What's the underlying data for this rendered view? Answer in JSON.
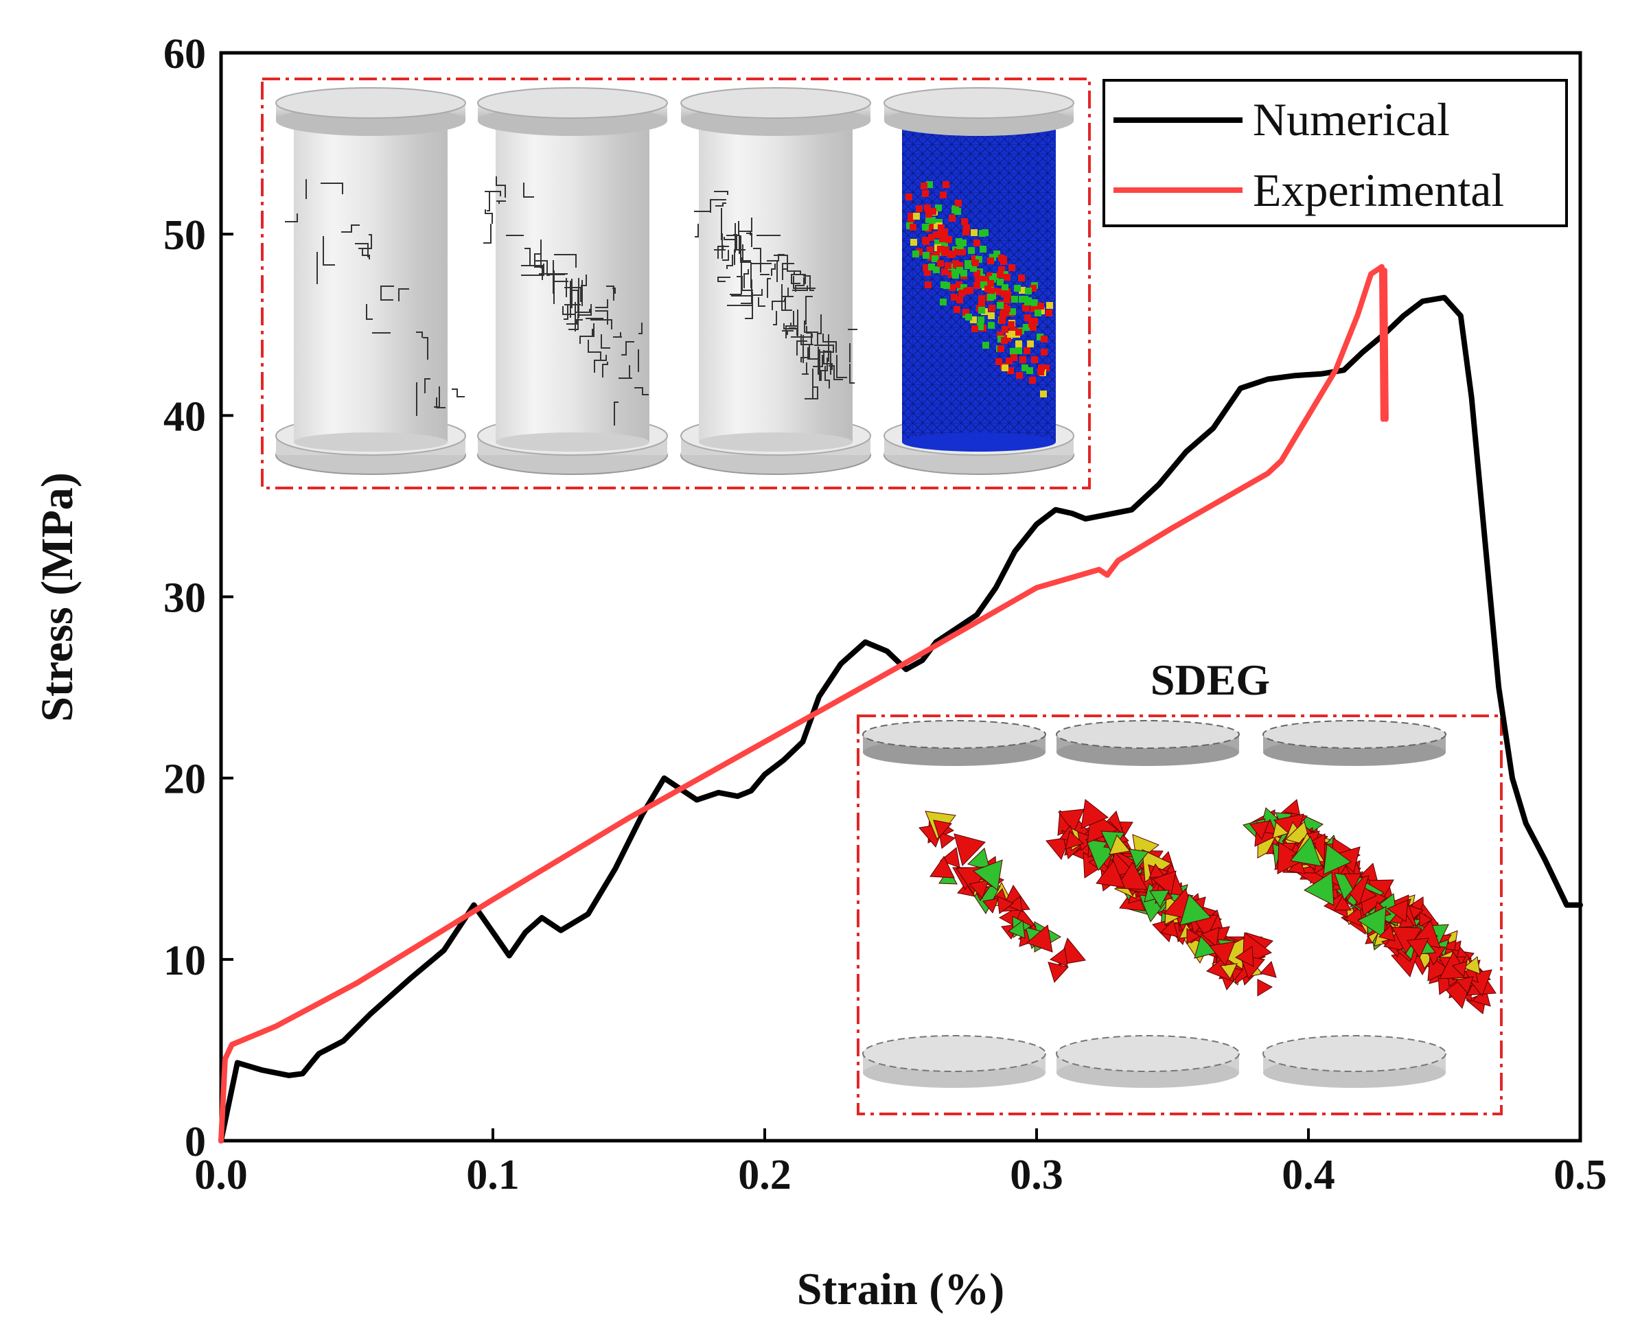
{
  "chart_data": {
    "type": "line",
    "title": "",
    "xlabel": "Strain (%)",
    "ylabel": "Stress (MPa)",
    "xlim": [
      0,
      0.5
    ],
    "ylim": [
      0,
      60
    ],
    "xticks": [
      "0.0",
      "0.1",
      "0.2",
      "0.3",
      "0.4",
      "0.5"
    ],
    "yticks": [
      "0",
      "10",
      "20",
      "30",
      "40",
      "50",
      "60"
    ],
    "legend_position": "top-right",
    "series": [
      {
        "name": "Numerical",
        "color": "#000000",
        "x": [
          0,
          0.006,
          0.015,
          0.025,
          0.03,
          0.036,
          0.045,
          0.055,
          0.07,
          0.082,
          0.093,
          0.1,
          0.106,
          0.112,
          0.118,
          0.125,
          0.135,
          0.145,
          0.155,
          0.163,
          0.17,
          0.175,
          0.183,
          0.19,
          0.195,
          0.2,
          0.207,
          0.214,
          0.22,
          0.228,
          0.237,
          0.245,
          0.252,
          0.258,
          0.263,
          0.27,
          0.278,
          0.285,
          0.292,
          0.3,
          0.307,
          0.313,
          0.318,
          0.325,
          0.335,
          0.345,
          0.355,
          0.365,
          0.375,
          0.385,
          0.395,
          0.405,
          0.413,
          0.42,
          0.428,
          0.435,
          0.442,
          0.45,
          0.456,
          0.46,
          0.465,
          0.47,
          0.475,
          0.48,
          0.487,
          0.495,
          0.5
        ],
        "y": [
          0,
          4.3,
          3.9,
          3.6,
          3.7,
          4.8,
          5.5,
          7.0,
          9.0,
          10.5,
          13.0,
          11.5,
          10.2,
          11.5,
          12.3,
          11.6,
          12.5,
          15.0,
          18.0,
          20.0,
          19.3,
          18.8,
          19.2,
          19.0,
          19.3,
          20.2,
          21.0,
          22.0,
          24.5,
          26.3,
          27.5,
          27.0,
          26.0,
          26.5,
          27.5,
          28.2,
          29.0,
          30.5,
          32.5,
          34.0,
          34.8,
          34.6,
          34.3,
          34.5,
          34.8,
          36.2,
          38.0,
          39.3,
          41.5,
          42.0,
          42.2,
          42.3,
          42.5,
          43.5,
          44.5,
          45.5,
          46.3,
          46.5,
          45.5,
          41.0,
          33.0,
          25.0,
          20.0,
          17.5,
          15.5,
          13.0,
          13.0
        ]
      },
      {
        "name": "Experimental",
        "color": "#ff4444",
        "x": [
          0,
          0.0015,
          0.004,
          0.02,
          0.05,
          0.1,
          0.15,
          0.2,
          0.25,
          0.3,
          0.323,
          0.326,
          0.33,
          0.35,
          0.385,
          0.39,
          0.4,
          0.41,
          0.418,
          0.423,
          0.427,
          0.4275,
          0.428,
          0.4285
        ],
        "y": [
          0,
          4.5,
          5.3,
          6.3,
          8.7,
          13.3,
          17.8,
          22.0,
          26.2,
          30.5,
          31.5,
          31.2,
          32.0,
          33.8,
          36.8,
          37.5,
          40.0,
          42.5,
          45.5,
          47.8,
          48.2,
          39.8,
          48.0,
          39.8
        ]
      }
    ],
    "inset_top_caption": "",
    "inset_bottom_caption": "SDEG"
  }
}
